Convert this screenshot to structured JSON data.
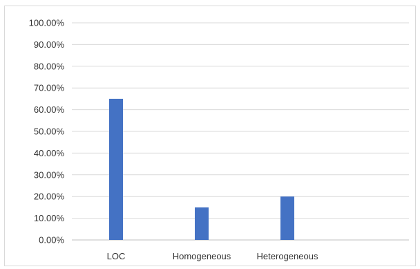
{
  "chart_data": {
    "type": "bar",
    "title": "",
    "xlabel": "",
    "ylabel": "",
    "categories": [
      "LOC",
      "Homogeneous",
      "Heterogeneous"
    ],
    "values": [
      65,
      15,
      20
    ],
    "ylim": [
      0,
      100
    ],
    "ytick_step": 10,
    "ytick_labels": [
      "0.00%",
      "10.00%",
      "20.00%",
      "30.00%",
      "40.00%",
      "50.00%",
      "60.00%",
      "70.00%",
      "80.00%",
      "90.00%",
      "100.00%"
    ],
    "grid": true,
    "legend": "none",
    "colors": {
      "bar": "#4472c4",
      "grid": "#d9d9d9",
      "axis": "#bfbfbf"
    }
  }
}
